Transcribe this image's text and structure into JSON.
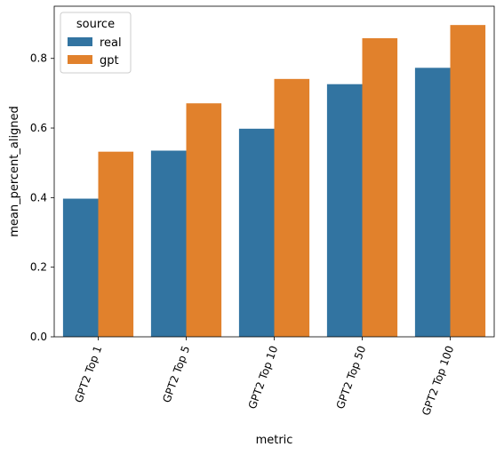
{
  "chart_data": {
    "type": "bar",
    "xlabel": "metric",
    "ylabel": "mean_percent_aligned",
    "ylim": [
      0,
      0.95
    ],
    "yticks": [
      "0.0",
      "0.2",
      "0.4",
      "0.6",
      "0.8"
    ],
    "categories": [
      "GPT2 Top 1",
      "GPT2 Top 5",
      "GPT2 Top 10",
      "GPT2 Top 50",
      "GPT2 Top 100"
    ],
    "legend": {
      "title": "source",
      "placement": "top-left"
    },
    "series": [
      {
        "name": "real",
        "color": "#3274a1",
        "values": [
          0.397,
          0.535,
          0.598,
          0.726,
          0.773
        ]
      },
      {
        "name": "gpt",
        "color": "#e1812c",
        "values": [
          0.532,
          0.671,
          0.741,
          0.858,
          0.896
        ]
      }
    ],
    "grid": false
  }
}
